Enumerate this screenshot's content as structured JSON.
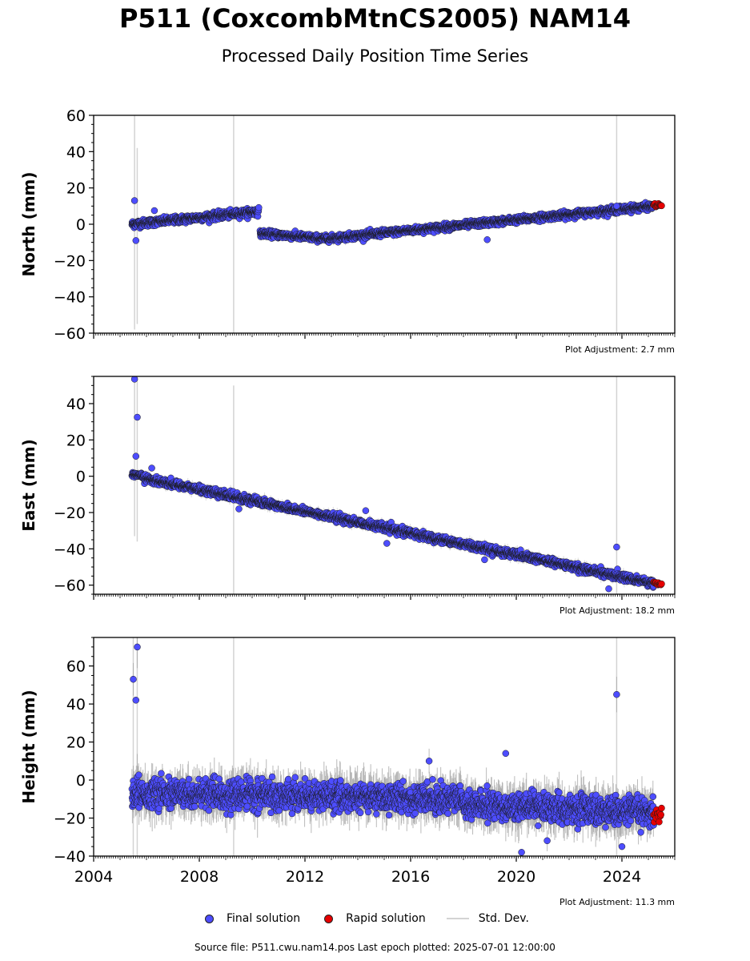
{
  "header": {
    "title": "P511 (CoxcombMtnCS2005) NAM14",
    "subtitle": "Processed Daily Position Time Series"
  },
  "legend": {
    "final_label": "Final solution",
    "rapid_label": "Rapid solution",
    "std_label": "Std. Dev."
  },
  "footer": {
    "source_text": "Source file: P511.cwu.nam14.pos  Last epoch plotted: 2025-07-01 12:00:00"
  },
  "colors": {
    "final": "#4d4dff",
    "rapid": "#e60000",
    "std": "#d3d3d3",
    "edge": "#1a1a1a"
  },
  "chart_data": [
    {
      "type": "scatter",
      "ylabel": "North (mm)",
      "adjustment": "Plot Adjustment: 2.7 mm",
      "ylim": [
        -60,
        60
      ],
      "yticks": [
        -60,
        -40,
        -20,
        0,
        20,
        40,
        60
      ],
      "xlim": [
        2004,
        2026
      ],
      "xticks": [
        2004,
        2008,
        2012,
        2016,
        2020,
        2024
      ],
      "xticklabels_visible": false,
      "series": [
        {
          "name": "Final solution",
          "role": "final",
          "segments": [
            {
              "x0": 2005.45,
              "x1": 2010.25,
              "y0": 0,
              "y1": 7,
              "noise": 1.8
            },
            {
              "x0": 2010.3,
              "x1": 2012.8,
              "y0": -5,
              "y1": -8,
              "noise": 1.6
            },
            {
              "x0": 2012.8,
              "x1": 2025.2,
              "y0": -8,
              "y1": 10,
              "noise": 1.6
            }
          ],
          "outliers": [
            [
              2005.55,
              13
            ],
            [
              2005.6,
              -9
            ],
            [
              2006.3,
              7.5
            ],
            [
              2018.9,
              -8.5
            ],
            [
              2023.8,
              10
            ]
          ]
        },
        {
          "name": "Rapid solution",
          "role": "rapid",
          "segments": [
            {
              "x0": 2025.2,
              "x1": 2025.5,
              "y0": 10.5,
              "y1": 10.5,
              "noise": 0.8
            }
          ],
          "outliers": []
        }
      ],
      "std_spikes": [
        [
          2005.55,
          -58,
          60
        ],
        [
          2005.65,
          -55,
          42
        ],
        [
          2009.3,
          -60,
          60
        ],
        [
          2023.8,
          -60,
          60
        ]
      ],
      "std_band": 2.0
    },
    {
      "type": "scatter",
      "ylabel": "East (mm)",
      "adjustment": "Plot Adjustment: 18.2 mm",
      "ylim": [
        -65,
        55
      ],
      "yticks": [
        -60,
        -40,
        -20,
        0,
        20,
        40
      ],
      "xlim": [
        2004,
        2026
      ],
      "xticks": [
        2004,
        2008,
        2012,
        2016,
        2020,
        2024
      ],
      "xticklabels_visible": false,
      "series": [
        {
          "name": "Final solution",
          "role": "final",
          "segments": [
            {
              "x0": 2005.45,
              "x1": 2005.9,
              "y0": 0.5,
              "y1": 0,
              "noise": 1.2
            },
            {
              "x0": 2005.9,
              "x1": 2025.2,
              "y0": -1,
              "y1": -59,
              "noise": 1.8
            }
          ],
          "outliers": [
            [
              2005.55,
              53.5
            ],
            [
              2005.65,
              32.5
            ],
            [
              2005.6,
              11
            ],
            [
              2006.2,
              4.5
            ],
            [
              2023.8,
              -39
            ],
            [
              2023.5,
              -62
            ],
            [
              2009.5,
              -18
            ],
            [
              2014.3,
              -19
            ],
            [
              2018.8,
              -46
            ],
            [
              2015.1,
              -37
            ]
          ]
        },
        {
          "name": "Rapid solution",
          "role": "rapid",
          "segments": [
            {
              "x0": 2025.2,
              "x1": 2025.5,
              "y0": -59,
              "y1": -59.5,
              "noise": 0.9
            }
          ],
          "outliers": []
        }
      ],
      "std_spikes": [
        [
          2005.55,
          -33,
          55
        ],
        [
          2005.65,
          -36,
          55
        ],
        [
          2009.3,
          -65,
          50
        ],
        [
          2023.8,
          -65,
          55
        ]
      ],
      "std_band": 2.5
    },
    {
      "type": "scatter",
      "ylabel": "Height (mm)",
      "adjustment": "Plot Adjustment: 11.3 mm",
      "ylim": [
        -40,
        75
      ],
      "yticks": [
        -40,
        -20,
        0,
        20,
        40,
        60
      ],
      "xlim": [
        2004,
        2026
      ],
      "xticks": [
        2004,
        2008,
        2012,
        2016,
        2020,
        2024
      ],
      "xticklabels": [
        "2004",
        "2008",
        "2012",
        "2016",
        "2020",
        "2024"
      ],
      "xticklabels_visible": true,
      "series": [
        {
          "name": "Final solution",
          "role": "final",
          "segments": [
            {
              "x0": 2005.45,
              "x1": 2018.0,
              "y0": -7,
              "y1": -10,
              "noise": 6.5
            },
            {
              "x0": 2018.0,
              "x1": 2025.2,
              "y0": -13,
              "y1": -17,
              "noise": 6.5
            }
          ],
          "outliers": [
            [
              2005.5,
              53
            ],
            [
              2005.6,
              42
            ],
            [
              2005.65,
              70
            ],
            [
              2019.6,
              14
            ],
            [
              2023.8,
              45
            ],
            [
              2020.2,
              -38
            ],
            [
              2016.7,
              10
            ],
            [
              2024.0,
              -35
            ]
          ]
        },
        {
          "name": "Rapid solution",
          "role": "rapid",
          "segments": [
            {
              "x0": 2025.2,
              "x1": 2025.5,
              "y0": -18,
              "y1": -18,
              "noise": 3.5
            }
          ],
          "outliers": []
        }
      ],
      "std_spikes": [
        [
          2005.5,
          -40,
          75
        ],
        [
          2005.65,
          -40,
          75
        ],
        [
          2009.3,
          -40,
          75
        ],
        [
          2023.8,
          -40,
          75
        ]
      ],
      "std_band": 9.0
    }
  ]
}
